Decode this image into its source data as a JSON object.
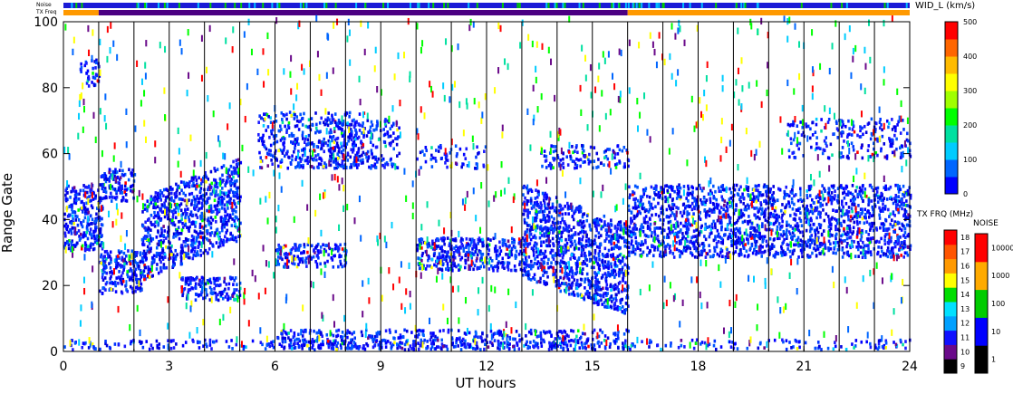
{
  "chart_data": {
    "type": "heatmap",
    "xlabel": "UT hours",
    "ylabel": "Range Gate",
    "xlim": [
      0,
      24
    ],
    "ylim": [
      0,
      100
    ],
    "x_ticks": [
      "0",
      "3",
      "6",
      "9",
      "12",
      "15",
      "18",
      "21",
      "24"
    ],
    "y_ticks": [
      "0",
      "20",
      "40",
      "60",
      "80",
      "100"
    ],
    "top_strips": {
      "noise_label": "Noise",
      "freq_label": "TX Freq",
      "freq_segments": [
        {
          "start": 0,
          "end": 1,
          "color": "#ff9900"
        },
        {
          "start": 1,
          "end": 16,
          "color": "#4b0082"
        },
        {
          "start": 16,
          "end": 24,
          "color": "#ff9900"
        }
      ],
      "noise_color": "#1a1ad6"
    },
    "width_colorbar": {
      "title": "WID_L (km/s)",
      "ticks": [
        "0",
        "100",
        "200",
        "300",
        "400",
        "500"
      ],
      "colors": [
        "#0000ff",
        "#0066ff",
        "#00ccff",
        "#00e0a0",
        "#00ff00",
        "#a0ff00",
        "#ffff00",
        "#ffbb00",
        "#ff6600",
        "#ff0000"
      ]
    },
    "freq_colorbar": {
      "title": "TX FRQ (MHz)",
      "ticks": [
        "9",
        "10",
        "11",
        "12",
        "13",
        "14",
        "15",
        "16",
        "17",
        "18"
      ],
      "colors": [
        "#000000",
        "#6a0a8a",
        "#1010ff",
        "#00a0ff",
        "#00e0ff",
        "#00dd00",
        "#ffff00",
        "#ff9900",
        "#ff5500",
        "#ff0000"
      ]
    },
    "noise_colorbar": {
      "title": "NOISE",
      "ticks": [
        "1",
        "10",
        "100",
        "1000",
        "10000"
      ],
      "colors": [
        "#000000",
        "#0000ff",
        "#00cc00",
        "#ffaa00",
        "#ff0000"
      ]
    },
    "bands": [
      {
        "t0": 0,
        "t1": 1.1,
        "g0": 30,
        "g1": 50,
        "density": 0.9
      },
      {
        "t0": 0.4,
        "t1": 1.0,
        "g0": 80,
        "g1": 88,
        "density": 0.6
      },
      {
        "t0": 1.0,
        "t1": 2.0,
        "g0": 45,
        "g1": 55,
        "density": 0.8
      },
      {
        "t0": 1.0,
        "t1": 2.2,
        "g0": 17,
        "g1": 30,
        "density": 0.9
      },
      {
        "t0": 2.2,
        "t1": 5.0,
        "g0": 25,
        "g1": 50,
        "density": 0.85,
        "slope": 0.55
      },
      {
        "t0": 3.3,
        "t1": 5.0,
        "g0": 15,
        "g1": 22,
        "density": 0.85
      },
      {
        "t0": 5.5,
        "t1": 8.5,
        "g0": 55,
        "g1": 72,
        "density": 0.55
      },
      {
        "t0": 6.0,
        "t1": 8.0,
        "g0": 25,
        "g1": 32,
        "density": 0.8
      },
      {
        "t0": 7.5,
        "t1": 9.5,
        "g0": 55,
        "g1": 70,
        "density": 0.5
      },
      {
        "t0": 10.0,
        "t1": 13.0,
        "g0": 24,
        "g1": 34,
        "density": 0.9
      },
      {
        "t0": 10.0,
        "t1": 12.0,
        "g0": 55,
        "g1": 62,
        "density": 0.3
      },
      {
        "t0": 13.0,
        "t1": 16.0,
        "g0": 22,
        "g1": 50,
        "density": 0.9,
        "slope": -0.5
      },
      {
        "t0": 13.5,
        "t1": 16.0,
        "g0": 55,
        "g1": 62,
        "density": 0.5
      },
      {
        "t0": 16.0,
        "t1": 24.0,
        "g0": 28,
        "g1": 50,
        "density": 0.75
      },
      {
        "t0": 20.5,
        "t1": 24.0,
        "g0": 58,
        "g1": 70,
        "density": 0.35
      },
      {
        "t0": 6.0,
        "t1": 16.0,
        "g0": 0,
        "g1": 6,
        "density": 0.55
      },
      {
        "t0": 0.0,
        "t1": 24.0,
        "g0": 0,
        "g1": 3,
        "density": 0.35
      }
    ]
  }
}
